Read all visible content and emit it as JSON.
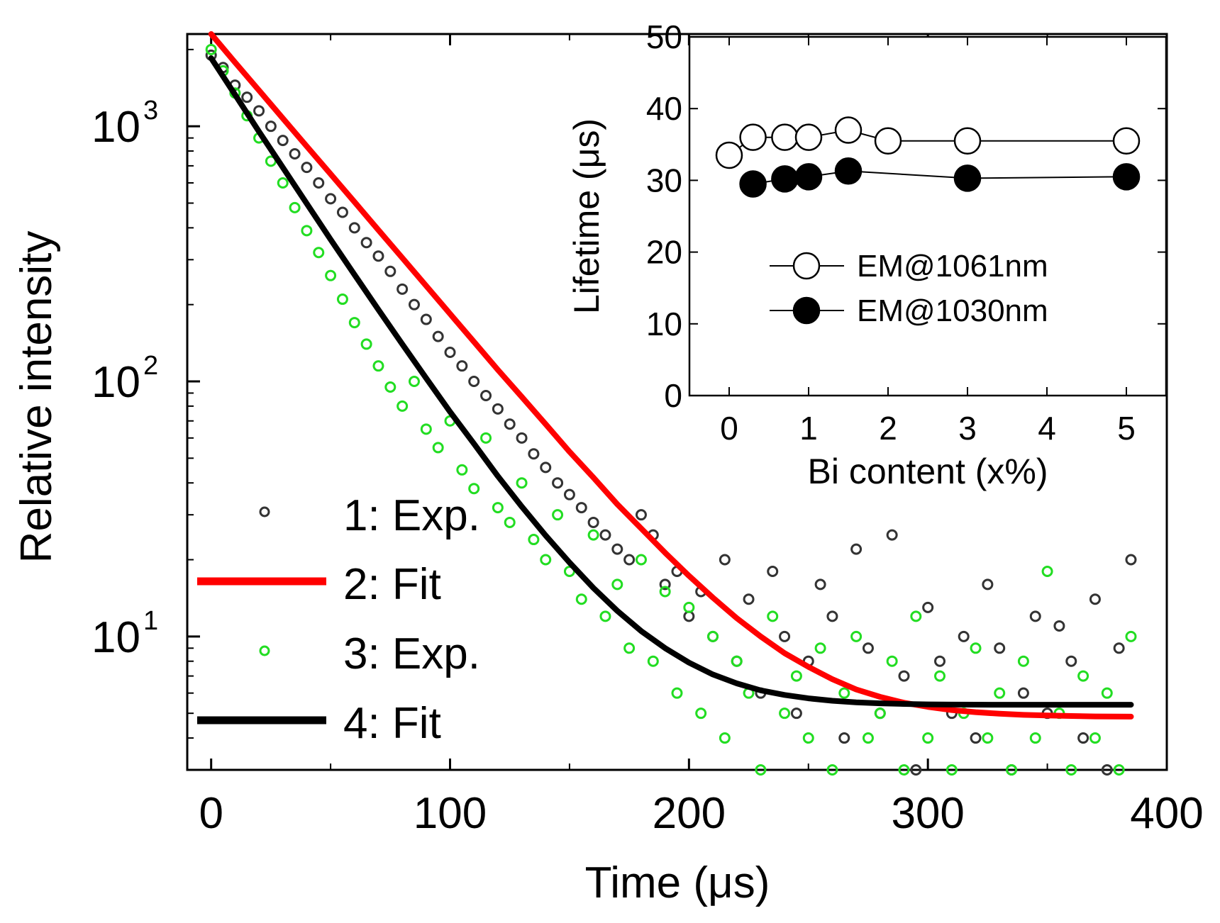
{
  "chart_data": [
    {
      "type": "scatter",
      "title": "",
      "xlabel": "Time (μs)",
      "ylabel": "Relative intensity",
      "xlim": [
        -10,
        400
      ],
      "ylim": [
        3.0,
        2300
      ],
      "yscale": "log",
      "xticks": [
        0,
        100,
        200,
        300,
        400
      ],
      "xtick_labels": [
        "0",
        "100",
        "200",
        "300",
        "400"
      ],
      "yticks": [
        10,
        100,
        1000
      ],
      "ytick_labels": [
        {
          "base": "10",
          "exp": "1"
        },
        {
          "base": "10",
          "exp": "2"
        },
        {
          "base": "10",
          "exp": "3"
        }
      ],
      "legend_position": "bottom-left",
      "series": [
        {
          "name": "1: Exp.",
          "kind": "scatter",
          "color": "#333333",
          "x": [
            0,
            5,
            10,
            15,
            20,
            25,
            30,
            35,
            40,
            45,
            50,
            55,
            60,
            65,
            70,
            75,
            80,
            85,
            90,
            95,
            100,
            105,
            110,
            115,
            120,
            125,
            130,
            135,
            140,
            145,
            150,
            155,
            160,
            165,
            170,
            175,
            180,
            185,
            190,
            195,
            200,
            205,
            210,
            215,
            220,
            225,
            230,
            235,
            240,
            245,
            250,
            255,
            260,
            265,
            270,
            275,
            280,
            285,
            290,
            295,
            300,
            305,
            310,
            315,
            320,
            325,
            330,
            335,
            340,
            345,
            350,
            355,
            360,
            365,
            370,
            375,
            380,
            385
          ],
          "y": [
            1900,
            1700,
            1450,
            1300,
            1150,
            1000,
            880,
            780,
            690,
            600,
            520,
            460,
            400,
            350,
            310,
            270,
            230,
            200,
            175,
            150,
            130,
            115,
            100,
            88,
            78,
            68,
            60,
            52,
            46,
            40,
            36,
            32,
            28,
            25,
            22,
            20,
            30,
            25,
            16,
            18,
            12,
            15,
            10,
            20,
            8,
            14,
            6,
            18,
            10,
            5,
            8,
            16,
            12,
            4,
            22,
            9,
            5,
            25,
            7,
            3,
            13,
            8,
            5,
            10,
            4,
            16,
            9,
            3,
            6,
            12,
            5,
            11,
            8,
            4,
            14,
            3,
            9,
            20
          ]
        },
        {
          "name": "2: Fit",
          "kind": "line",
          "color": "#ff0000",
          "x": [
            0,
            10,
            20,
            30,
            40,
            50,
            60,
            70,
            80,
            90,
            100,
            110,
            120,
            130,
            140,
            150,
            160,
            170,
            180,
            190,
            200,
            210,
            220,
            230,
            240,
            250,
            260,
            270,
            280,
            290,
            300,
            310,
            320,
            330,
            340,
            350,
            360,
            370,
            385
          ],
          "y": [
            2300,
            1780,
            1385,
            1075,
            835,
            650,
            505,
            392,
            305,
            237,
            184,
            143,
            111,
            87,
            68,
            53,
            42,
            33,
            26.5,
            21.3,
            17.3,
            14.2,
            11.8,
            10.0,
            8.6,
            7.6,
            6.8,
            6.2,
            5.8,
            5.5,
            5.3,
            5.15,
            5.05,
            4.98,
            4.93,
            4.9,
            4.88,
            4.86,
            4.85
          ]
        },
        {
          "name": "3: Exp.",
          "kind": "scatter",
          "color": "#22dd22",
          "x": [
            0,
            5,
            10,
            15,
            20,
            25,
            30,
            35,
            40,
            45,
            50,
            55,
            60,
            65,
            70,
            75,
            80,
            85,
            90,
            95,
            100,
            105,
            110,
            115,
            120,
            125,
            130,
            135,
            140,
            145,
            150,
            155,
            160,
            165,
            170,
            175,
            180,
            185,
            190,
            195,
            200,
            205,
            210,
            215,
            220,
            225,
            230,
            235,
            240,
            245,
            250,
            255,
            260,
            265,
            270,
            275,
            280,
            285,
            290,
            295,
            300,
            305,
            310,
            315,
            320,
            325,
            330,
            335,
            340,
            345,
            350,
            355,
            360,
            365,
            370,
            375,
            380,
            385
          ],
          "y": [
            2000,
            1650,
            1350,
            1100,
            900,
            730,
            600,
            480,
            390,
            320,
            260,
            210,
            170,
            140,
            115,
            95,
            80,
            100,
            65,
            55,
            70,
            45,
            38,
            60,
            32,
            28,
            40,
            24,
            20,
            30,
            18,
            14,
            25,
            12,
            16,
            9,
            20,
            8,
            15,
            6,
            13,
            5,
            10,
            4,
            8,
            6,
            3,
            12,
            5,
            7,
            4,
            9,
            3,
            6,
            10,
            4,
            5,
            8,
            3,
            12,
            4,
            7,
            3,
            5,
            9,
            4,
            6,
            3,
            8,
            4,
            18,
            5,
            3,
            7,
            4,
            6,
            3,
            10
          ]
        },
        {
          "name": "4: Fit",
          "kind": "line",
          "color": "#000000",
          "x": [
            0,
            10,
            20,
            30,
            40,
            50,
            60,
            70,
            80,
            90,
            100,
            110,
            120,
            130,
            140,
            150,
            160,
            170,
            180,
            190,
            200,
            210,
            220,
            230,
            240,
            250,
            260,
            270,
            280,
            290,
            300,
            310,
            320,
            330,
            340,
            350,
            360,
            370,
            385
          ],
          "y": [
            1850,
            1330,
            955,
            690,
            498,
            360,
            262,
            191,
            140,
            103,
            76,
            57,
            42.5,
            32.3,
            24.9,
            19.5,
            15.5,
            12.6,
            10.5,
            9.0,
            7.9,
            7.1,
            6.55,
            6.15,
            5.9,
            5.72,
            5.6,
            5.52,
            5.47,
            5.44,
            5.42,
            5.41,
            5.405,
            5.4,
            5.4,
            5.4,
            5.4,
            5.4,
            5.4
          ]
        }
      ]
    },
    {
      "type": "line",
      "title": "",
      "xlabel": "Bi content (x%)",
      "ylabel": "Lifetime (μs)",
      "xlim": [
        -0.5,
        5.5
      ],
      "ylim": [
        0,
        50
      ],
      "xticks": [
        0,
        1,
        2,
        3,
        4,
        5
      ],
      "xtick_labels": [
        "0",
        "1",
        "2",
        "3",
        "4",
        "5"
      ],
      "yticks": [
        0,
        10,
        20,
        30,
        40,
        50
      ],
      "ytick_labels": [
        "0",
        "10",
        "20",
        "30",
        "40",
        "50"
      ],
      "legend_position": "center",
      "series": [
        {
          "name": "EM@1061nm",
          "marker": "open-circle",
          "x": [
            0.0,
            0.3,
            0.7,
            1.0,
            1.5,
            2.0,
            3.0,
            5.0
          ],
          "y": [
            33.5,
            36.0,
            36.0,
            36.0,
            37.0,
            35.5,
            35.5,
            35.5
          ]
        },
        {
          "name": "EM@1030nm",
          "marker": "filled-circle",
          "x": [
            0.3,
            0.7,
            1.0,
            1.5,
            3.0,
            5.0
          ],
          "y": [
            29.5,
            30.2,
            30.5,
            31.3,
            30.3,
            30.5
          ]
        }
      ]
    }
  ]
}
